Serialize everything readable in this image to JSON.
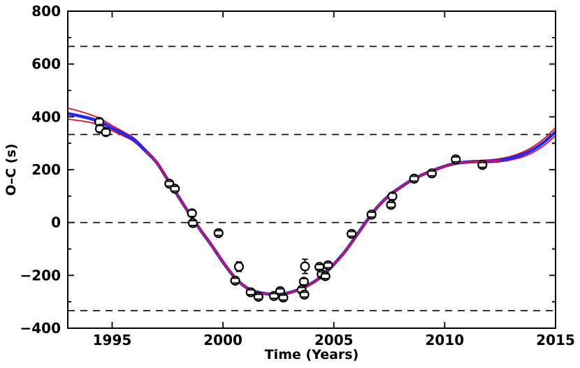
{
  "chart_data": {
    "type": "scatter",
    "title": "",
    "xlabel": "Time (Years)",
    "ylabel": "O–C (s)",
    "xlim": [
      1993,
      2015
    ],
    "ylim": [
      -400,
      800
    ],
    "grid": false,
    "legend": "none",
    "x_ticks": [
      1995,
      2000,
      2005,
      2010,
      2015
    ],
    "x_tick_labels": [
      "1995",
      "2000",
      "2005",
      "2010",
      "2015"
    ],
    "y_ticks_major": [
      -400,
      -200,
      0,
      200,
      400,
      600,
      800
    ],
    "y_tick_labels": [
      "−400",
      "−200",
      "0",
      "200",
      "400",
      "600",
      "800"
    ],
    "y_ticks_minor": [
      -300,
      -100,
      100,
      300,
      500,
      700
    ],
    "dashed_reference_lines_y": [
      666.67,
      333.33,
      0,
      -333.33
    ],
    "colors": {
      "best_fit": "#2627ef",
      "error_bounds": "#ee0011",
      "secondary_fit": "#cb155a",
      "frame": "#000000",
      "points": "#000000",
      "background": "#ffffff"
    },
    "points": [
      {
        "x": 1994.42,
        "y": 381,
        "err": 12
      },
      {
        "x": 1994.45,
        "y": 355,
        "err": 12
      },
      {
        "x": 1994.72,
        "y": 342,
        "err": 12
      },
      {
        "x": 1997.58,
        "y": 147,
        "err": 9
      },
      {
        "x": 1997.83,
        "y": 128,
        "err": 9
      },
      {
        "x": 1998.6,
        "y": 35,
        "err": 12
      },
      {
        "x": 1998.64,
        "y": -2,
        "err": 9
      },
      {
        "x": 1999.8,
        "y": -40,
        "err": 9
      },
      {
        "x": 2000.55,
        "y": -220,
        "err": 9
      },
      {
        "x": 2000.72,
        "y": -167,
        "err": 18
      },
      {
        "x": 2001.25,
        "y": -264,
        "err": 9
      },
      {
        "x": 2001.6,
        "y": -281,
        "err": 9
      },
      {
        "x": 2002.3,
        "y": -278,
        "err": 9
      },
      {
        "x": 2002.58,
        "y": -260,
        "err": 9
      },
      {
        "x": 2002.72,
        "y": -284,
        "err": 9
      },
      {
        "x": 2003.55,
        "y": -255,
        "err": 9
      },
      {
        "x": 2003.67,
        "y": -273,
        "err": 9
      },
      {
        "x": 2003.65,
        "y": -224,
        "err": 12
      },
      {
        "x": 2003.7,
        "y": -166,
        "err": 27
      },
      {
        "x": 2004.35,
        "y": -168,
        "err": 9
      },
      {
        "x": 2004.45,
        "y": -196,
        "err": 9
      },
      {
        "x": 2004.62,
        "y": -203,
        "err": 9
      },
      {
        "x": 2004.74,
        "y": -162,
        "err": 9
      },
      {
        "x": 2005.8,
        "y": -43,
        "err": 9
      },
      {
        "x": 2006.7,
        "y": 30,
        "err": 9
      },
      {
        "x": 2007.58,
        "y": 67,
        "err": 9
      },
      {
        "x": 2007.64,
        "y": 99,
        "err": 12
      },
      {
        "x": 2008.62,
        "y": 166,
        "err": 9
      },
      {
        "x": 2009.42,
        "y": 186,
        "err": 9
      },
      {
        "x": 2010.5,
        "y": 239,
        "err": 9
      },
      {
        "x": 2011.7,
        "y": 218,
        "err": 9
      }
    ],
    "best_fit_curve": {
      "x": [
        1993,
        1993.5,
        1994,
        1994.5,
        1995,
        1995.5,
        1996,
        1996.5,
        1997,
        1997.5,
        1998,
        1998.5,
        1999,
        1999.5,
        2000,
        2000.5,
        2001,
        2001.5,
        2002,
        2002.5,
        2003,
        2003.5,
        2004,
        2004.5,
        2005,
        2005.5,
        2006,
        2006.5,
        2007,
        2007.5,
        2008,
        2008.5,
        2009,
        2009.5,
        2010,
        2010.5,
        2011,
        2011.5,
        2012,
        2012.5,
        2013,
        2013.5,
        2014,
        2014.5,
        2015
      ],
      "y": [
        412,
        404,
        394,
        380,
        357,
        336,
        312,
        272,
        228,
        163,
        97,
        32,
        -30,
        -88,
        -150,
        -205,
        -243,
        -262,
        -270,
        -272,
        -265,
        -251,
        -230,
        -200,
        -158,
        -110,
        -52,
        8,
        62,
        103,
        133,
        160,
        181,
        198,
        213,
        224,
        229,
        231,
        232,
        236,
        244,
        257,
        277,
        306,
        344
      ],
      "bound_offset": [
        21,
        18,
        15,
        12,
        10,
        8,
        7,
        6,
        5,
        4.5,
        4,
        4,
        3.5,
        3.5,
        3,
        3,
        3,
        3,
        3,
        3,
        3,
        3,
        3,
        3,
        3,
        3,
        3,
        3,
        3,
        3,
        3,
        3,
        3,
        3,
        3,
        3,
        3.5,
        4,
        5,
        6,
        7,
        9,
        11,
        13,
        15
      ]
    },
    "secondary_fit_range": [
      1996.5,
      2012.5
    ]
  }
}
